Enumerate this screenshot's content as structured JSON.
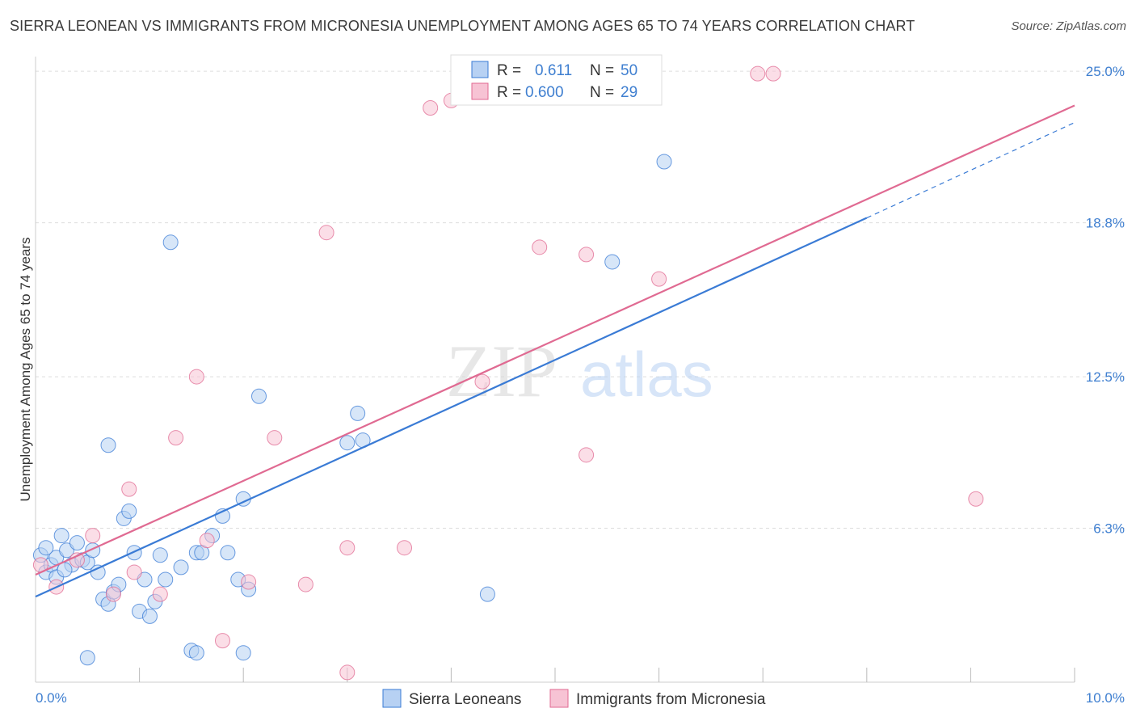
{
  "header": {
    "title": "SIERRA LEONEAN VS IMMIGRANTS FROM MICRONESIA UNEMPLOYMENT AMONG AGES 65 TO 74 YEARS CORRELATION CHART",
    "source": "Source: ZipAtlas.com"
  },
  "watermark": {
    "zip": "ZIP",
    "atlas": "atlas"
  },
  "colors": {
    "blue": "#3a7bd5",
    "blue_fill": "#b7d1f3",
    "pink": "#e06a92",
    "pink_fill": "#f7c3d4",
    "grid": "#dddddd",
    "tick_text": "#3f7fd0"
  },
  "legend": {
    "r_label": "R =",
    "n_label": "N =",
    "series": [
      {
        "r": "0.611",
        "n": "50"
      },
      {
        "r": "0.600",
        "n": "29"
      }
    ]
  },
  "chart_data": {
    "type": "scatter",
    "title": "SIERRA LEONEAN VS IMMIGRANTS FROM MICRONESIA UNEMPLOYMENT AMONG AGES 65 TO 74 YEARS CORRELATION CHART",
    "xlabel": "",
    "ylabel": "Unemployment Among Ages 65 to 74 years",
    "xlim": [
      0,
      10
    ],
    "ylim": [
      0,
      25.6
    ],
    "y_ticks": [
      {
        "value": 6.3,
        "label": "6.3%"
      },
      {
        "value": 12.5,
        "label": "12.5%"
      },
      {
        "value": 18.8,
        "label": "18.8%"
      },
      {
        "value": 25.0,
        "label": "25.0%"
      }
    ],
    "x_tick_labels": {
      "min": "0.0%",
      "max": "10.0%"
    },
    "grid": true,
    "series": [
      {
        "name": "Sierra Leoneans",
        "color": "#3a7bd5",
        "trend": {
          "x0": 0,
          "y0": 3.5,
          "x1": 8.0,
          "y1": 19.0,
          "dash_x1": 10.0,
          "dash_y1": 22.9
        },
        "points": [
          [
            0.05,
            5.2
          ],
          [
            0.1,
            4.5
          ],
          [
            0.15,
            4.8
          ],
          [
            0.2,
            5.1
          ],
          [
            0.25,
            6.0
          ],
          [
            0.1,
            5.5
          ],
          [
            0.3,
            5.4
          ],
          [
            0.35,
            4.8
          ],
          [
            0.4,
            5.7
          ],
          [
            0.45,
            5.0
          ],
          [
            0.5,
            4.9
          ],
          [
            0.55,
            5.4
          ],
          [
            0.6,
            4.5
          ],
          [
            0.65,
            3.4
          ],
          [
            0.7,
            3.2
          ],
          [
            0.75,
            3.7
          ],
          [
            0.8,
            4.0
          ],
          [
            0.85,
            6.7
          ],
          [
            0.9,
            7.0
          ],
          [
            0.95,
            5.3
          ],
          [
            1.0,
            2.9
          ],
          [
            1.05,
            4.2
          ],
          [
            1.1,
            2.7
          ],
          [
            1.15,
            3.3
          ],
          [
            1.2,
            5.2
          ],
          [
            1.25,
            4.2
          ],
          [
            1.4,
            4.7
          ],
          [
            1.5,
            1.3
          ],
          [
            1.55,
            5.3
          ],
          [
            1.6,
            5.3
          ],
          [
            1.55,
            1.2
          ],
          [
            1.7,
            6.0
          ],
          [
            1.8,
            6.8
          ],
          [
            1.85,
            5.3
          ],
          [
            1.95,
            4.2
          ],
          [
            2.0,
            7.5
          ],
          [
            2.05,
            3.8
          ],
          [
            0.7,
            9.7
          ],
          [
            1.3,
            18.0
          ],
          [
            2.15,
            11.7
          ],
          [
            3.0,
            9.8
          ],
          [
            3.1,
            11.0
          ],
          [
            3.15,
            9.9
          ],
          [
            4.35,
            3.6
          ],
          [
            5.55,
            17.2
          ],
          [
            6.05,
            21.3
          ],
          [
            0.5,
            1.0
          ],
          [
            2.0,
            1.2
          ],
          [
            0.2,
            4.3
          ],
          [
            0.28,
            4.6
          ]
        ]
      },
      {
        "name": "Immigrants from Micronesia",
        "color": "#e06a92",
        "trend": {
          "x0": 0,
          "y0": 4.4,
          "x1": 10.0,
          "y1": 23.6
        },
        "points": [
          [
            0.05,
            4.8
          ],
          [
            0.2,
            3.9
          ],
          [
            0.4,
            5.0
          ],
          [
            0.55,
            6.0
          ],
          [
            0.75,
            3.6
          ],
          [
            0.9,
            7.9
          ],
          [
            0.95,
            4.5
          ],
          [
            1.2,
            3.6
          ],
          [
            1.35,
            10.0
          ],
          [
            1.55,
            12.5
          ],
          [
            1.65,
            5.8
          ],
          [
            1.8,
            1.7
          ],
          [
            2.05,
            4.1
          ],
          [
            2.3,
            10.0
          ],
          [
            2.6,
            4.0
          ],
          [
            2.8,
            18.4
          ],
          [
            3.0,
            5.5
          ],
          [
            3.0,
            0.4
          ],
          [
            3.55,
            5.5
          ],
          [
            3.8,
            23.5
          ],
          [
            4.0,
            23.8
          ],
          [
            4.3,
            12.3
          ],
          [
            4.85,
            17.8
          ],
          [
            5.3,
            9.3
          ],
          [
            5.3,
            17.5
          ],
          [
            6.0,
            16.5
          ],
          [
            6.95,
            24.9
          ],
          [
            7.1,
            24.9
          ],
          [
            9.05,
            7.5
          ]
        ]
      }
    ]
  }
}
